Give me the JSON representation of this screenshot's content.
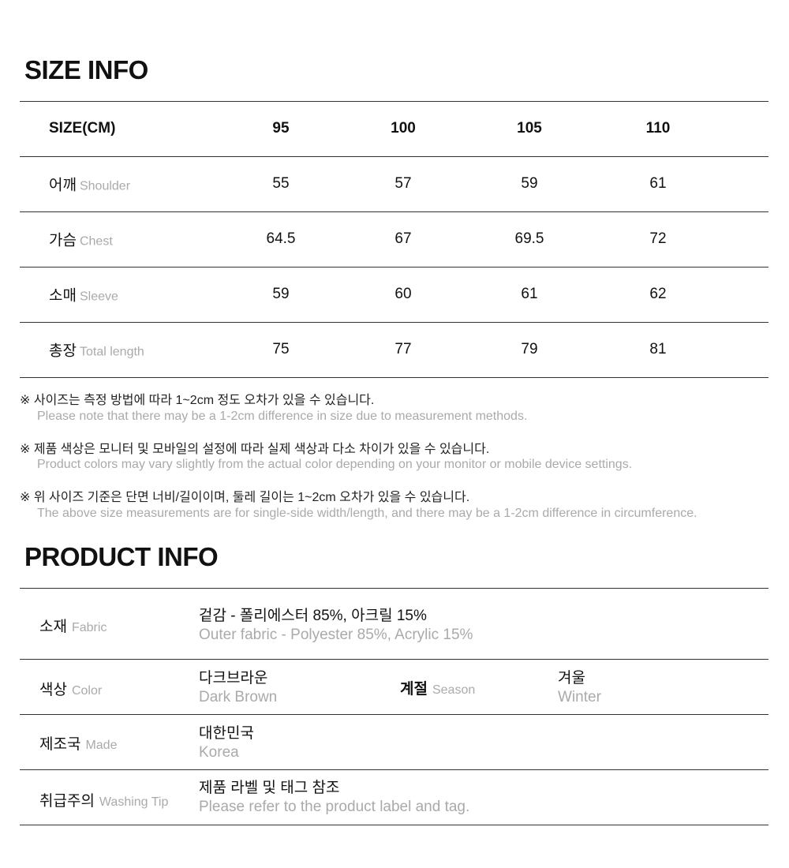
{
  "size_info": {
    "title": "SIZE INFO",
    "header": {
      "label": "SIZE(CM)",
      "sizes": [
        "95",
        "100",
        "105",
        "110"
      ]
    },
    "rows": [
      {
        "ko": "어깨",
        "en": "Shoulder",
        "values": [
          "55",
          "57",
          "59",
          "61"
        ]
      },
      {
        "ko": "가슴",
        "en": "Chest",
        "values": [
          "64.5",
          "67",
          "69.5",
          "72"
        ]
      },
      {
        "ko": "소매",
        "en": "Sleeve",
        "values": [
          "59",
          "60",
          "61",
          "62"
        ]
      },
      {
        "ko": "총장",
        "en": "Total length",
        "values": [
          "75",
          "77",
          "79",
          "81"
        ]
      }
    ],
    "notes": [
      {
        "ko": "※ 사이즈는 측정 방법에 따라 1~2cm 정도 오차가 있을 수 있습니다.",
        "en": "Please note that there may be a 1-2cm difference in size due to measurement methods."
      },
      {
        "ko": "※ 제품 색상은 모니터 및 모바일의 설정에 따라 실제 색상과 다소 차이가 있을 수 있습니다.",
        "en": "Product colors may vary slightly from the actual color depending on your monitor or mobile device settings."
      },
      {
        "ko": "※ 위 사이즈 기준은 단면 너비/길이이며, 둘레 길이는 1~2cm 오차가 있을 수 있습니다.",
        "en": "The above size measurements are for single-side width/length, and there may be a 1-2cm difference in circumference."
      }
    ]
  },
  "product_info": {
    "title": "PRODUCT INFO",
    "fabric": {
      "ko": "소재",
      "en": "Fabric",
      "value_ko": "겉감 - 폴리에스터 85%, 아크릴 15%",
      "value_en": "Outer fabric - Polyester 85%, Acrylic 15%"
    },
    "color": {
      "ko": "색상",
      "en": "Color",
      "value_ko": "다크브라운",
      "value_en": "Dark Brown"
    },
    "season": {
      "ko": "계절",
      "en": "Season",
      "value_ko": "겨울",
      "value_en": "Winter"
    },
    "made": {
      "ko": "제조국",
      "en": "Made",
      "value_ko": "대한민국",
      "value_en": "Korea"
    },
    "washing": {
      "ko": "취급주의",
      "en": "Washing Tip",
      "value_ko": "제품 라벨 및 태그 참조",
      "value_en": "Please refer to the product label and tag."
    }
  }
}
